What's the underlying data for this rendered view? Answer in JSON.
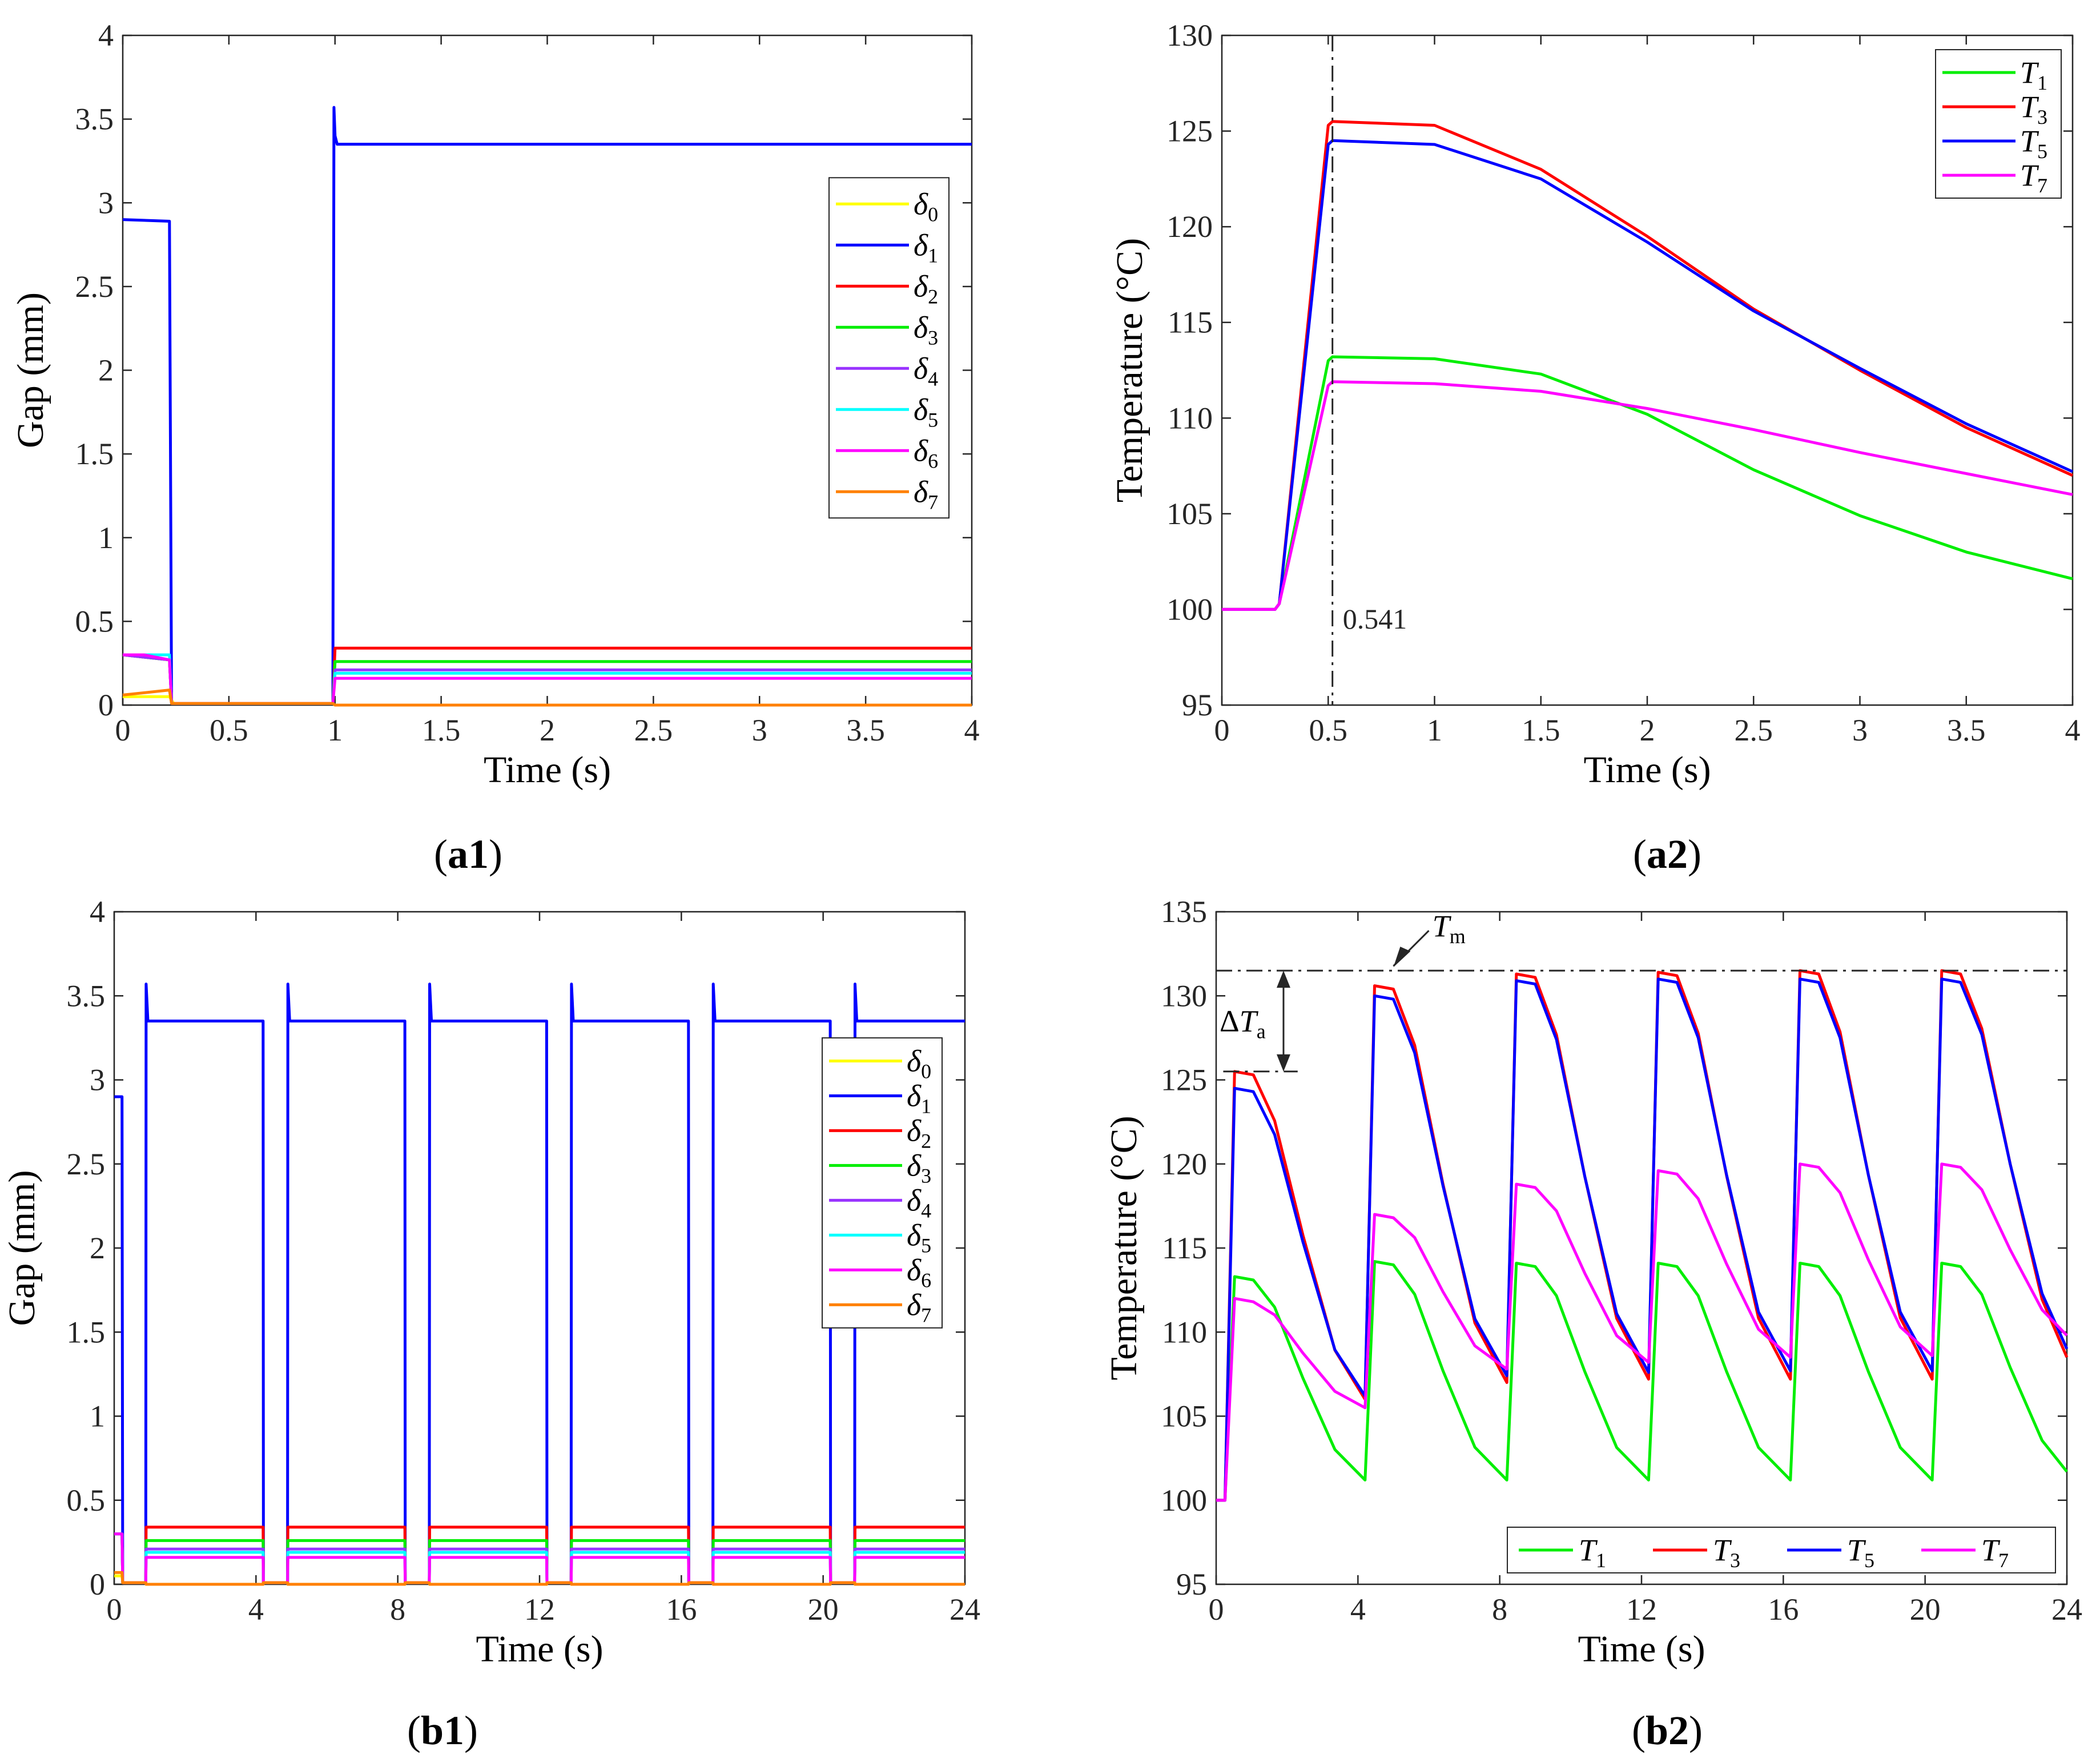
{
  "chart_data": [
    {
      "id": "a1",
      "type": "line",
      "panel_label_bold": "a1",
      "xlabel": "Time (s)",
      "ylabel": "Gap (mm)",
      "xlim": [
        0,
        4
      ],
      "ylim": [
        0,
        4
      ],
      "xticks": [
        0,
        0.5,
        1,
        1.5,
        2,
        2.5,
        3,
        3.5,
        4
      ],
      "yticks": [
        0,
        0.5,
        1,
        1.5,
        2,
        2.5,
        3,
        3.5,
        4
      ],
      "legend_position": "right",
      "series": [
        {
          "name": "δ",
          "sub": "0",
          "color": "#ffff00",
          "x": [
            0,
            0.22,
            0.24,
            0.99,
            1.0,
            4.0
          ],
          "y": [
            0.05,
            0.05,
            0.01,
            0.01,
            0.0,
            0.0
          ]
        },
        {
          "name": "δ",
          "sub": "1",
          "color": "#0000ff",
          "x": [
            0,
            0.22,
            0.23,
            0.99,
            0.995,
            1.0,
            1.01,
            1.02,
            4.0
          ],
          "y": [
            2.9,
            2.89,
            0.01,
            0.01,
            3.57,
            3.4,
            3.35,
            3.35,
            3.35
          ]
        },
        {
          "name": "δ",
          "sub": "2",
          "color": "#ff0000",
          "x": [
            0,
            0.22,
            0.23,
            0.99,
            1.0,
            4.0
          ],
          "y": [
            0.3,
            0.27,
            0.01,
            0.01,
            0.34,
            0.34
          ]
        },
        {
          "name": "δ",
          "sub": "3",
          "color": "#00ee00",
          "x": [
            0,
            0.22,
            0.23,
            0.99,
            1.0,
            4.0
          ],
          "y": [
            0.3,
            0.27,
            0.01,
            0.01,
            0.26,
            0.26
          ]
        },
        {
          "name": "δ",
          "sub": "4",
          "color": "#9933ff",
          "x": [
            0,
            0.22,
            0.23,
            0.99,
            1.0,
            4.0
          ],
          "y": [
            0.3,
            0.27,
            0.01,
            0.01,
            0.21,
            0.21
          ]
        },
        {
          "name": "δ",
          "sub": "5",
          "color": "#00ffff",
          "x": [
            0,
            0.22,
            0.23,
            0.99,
            1.0,
            4.0
          ],
          "y": [
            0.3,
            0.3,
            0.01,
            0.01,
            0.19,
            0.19
          ]
        },
        {
          "name": "δ",
          "sub": "6",
          "color": "#ff00ff",
          "x": [
            0,
            0.1,
            0.22,
            0.23,
            0.99,
            1.0,
            4.0
          ],
          "y": [
            0.3,
            0.3,
            0.27,
            0.01,
            0.01,
            0.16,
            0.16
          ]
        },
        {
          "name": "δ",
          "sub": "7",
          "color": "#ff8000",
          "x": [
            0,
            0.22,
            0.23,
            0.99,
            1.0,
            4.0
          ],
          "y": [
            0.06,
            0.09,
            0.01,
            0.01,
            0.0,
            0.0
          ]
        }
      ]
    },
    {
      "id": "a2",
      "type": "line",
      "panel_label_bold": "a2",
      "xlabel": "Time (s)",
      "ylabel": "Temperature (°C)",
      "xlim": [
        0,
        4
      ],
      "ylim": [
        95,
        130
      ],
      "xticks": [
        0,
        0.5,
        1,
        1.5,
        2,
        2.5,
        3,
        3.5,
        4
      ],
      "yticks": [
        95,
        100,
        105,
        110,
        115,
        120,
        125,
        130
      ],
      "legend_position": "top-right",
      "annotation": {
        "text": "0.541",
        "x": 0.52
      },
      "series": [
        {
          "name": "T",
          "sub": "1",
          "color": "#00ee00",
          "x": [
            0,
            0.25,
            0.27,
            0.5,
            0.52,
            1.0,
            1.5,
            2.0,
            2.5,
            3.0,
            3.5,
            4.0
          ],
          "y": [
            100,
            100,
            100.3,
            113.0,
            113.2,
            113.1,
            112.3,
            110.2,
            107.3,
            104.9,
            103.0,
            101.6
          ]
        },
        {
          "name": "T",
          "sub": "3",
          "color": "#ff0000",
          "x": [
            0,
            0.25,
            0.27,
            0.5,
            0.52,
            1.0,
            1.5,
            2.0,
            2.5,
            3.0,
            3.5,
            4.0
          ],
          "y": [
            100,
            100,
            100.3,
            125.3,
            125.5,
            125.3,
            123.0,
            119.5,
            115.7,
            112.5,
            109.5,
            107.0
          ]
        },
        {
          "name": "T",
          "sub": "5",
          "color": "#0000ff",
          "x": [
            0,
            0.25,
            0.27,
            0.5,
            0.52,
            1.0,
            1.5,
            2.0,
            2.5,
            3.0,
            3.5,
            4.0
          ],
          "y": [
            100,
            100,
            100.3,
            124.3,
            124.5,
            124.3,
            122.5,
            119.2,
            115.6,
            112.6,
            109.7,
            107.2
          ]
        },
        {
          "name": "T",
          "sub": "7",
          "color": "#ff00ff",
          "x": [
            0,
            0.25,
            0.27,
            0.5,
            0.52,
            1.0,
            1.5,
            2.0,
            2.5,
            3.0,
            3.5,
            4.0
          ],
          "y": [
            100,
            100,
            100.3,
            111.7,
            111.9,
            111.8,
            111.4,
            110.5,
            109.4,
            108.2,
            107.1,
            106.0
          ]
        }
      ]
    },
    {
      "id": "b1",
      "type": "line",
      "panel_label_bold": "b1",
      "xlabel": "Time (s)",
      "ylabel": "Gap (mm)",
      "xlim": [
        0,
        24
      ],
      "ylim": [
        0,
        4
      ],
      "xticks": [
        0,
        4,
        8,
        12,
        16,
        20,
        24
      ],
      "yticks": [
        0,
        0.5,
        1,
        1.5,
        2,
        2.5,
        3,
        3.5,
        4
      ],
      "legend_position": "right",
      "cycle": {
        "period": 4,
        "open_start": 0.9,
        "close_at": 4.2
      },
      "series": [
        {
          "name": "δ",
          "sub": "0",
          "color": "#ffff00",
          "level": 0.0,
          "initial": 0.05
        },
        {
          "name": "δ",
          "sub": "1",
          "color": "#0000ff",
          "level": 3.35,
          "initial": 2.9,
          "spike": 3.57
        },
        {
          "name": "δ",
          "sub": "2",
          "color": "#ff0000",
          "level": 0.34,
          "initial": 0.3
        },
        {
          "name": "δ",
          "sub": "3",
          "color": "#00ee00",
          "level": 0.26,
          "initial": 0.3
        },
        {
          "name": "δ",
          "sub": "4",
          "color": "#9933ff",
          "level": 0.21,
          "initial": 0.3
        },
        {
          "name": "δ",
          "sub": "5",
          "color": "#00ffff",
          "level": 0.19,
          "initial": 0.3
        },
        {
          "name": "δ",
          "sub": "6",
          "color": "#ff00ff",
          "level": 0.16,
          "initial": 0.3
        },
        {
          "name": "δ",
          "sub": "7",
          "color": "#ff8000",
          "level": 0.0,
          "initial": 0.07
        }
      ]
    },
    {
      "id": "b2",
      "type": "line",
      "panel_label_bold": "b2",
      "xlabel": "Time (s)",
      "ylabel": "Temperature (°C)",
      "xlim": [
        0,
        24
      ],
      "ylim": [
        95,
        135
      ],
      "xticks": [
        0,
        4,
        8,
        12,
        16,
        20,
        24
      ],
      "yticks": [
        95,
        100,
        105,
        110,
        115,
        120,
        125,
        130,
        135
      ],
      "legend_position": "bottom-right",
      "annotation_tm": {
        "label": "T",
        "sub": "m",
        "value": 131.5
      },
      "annotation_dta": {
        "label": "ΔT",
        "sub": "a",
        "from": 125.5,
        "to": 131.5
      },
      "series": [
        {
          "name": "T",
          "sub": "1",
          "color": "#00ee00",
          "peaks": [
            113.3,
            114.2,
            114.1,
            114.1,
            114.1,
            114.1
          ],
          "troughs": [
            101.2,
            101.2,
            101.2,
            101.2,
            101.2,
            101.7
          ]
        },
        {
          "name": "T",
          "sub": "3",
          "color": "#ff0000",
          "peaks": [
            125.5,
            130.6,
            131.3,
            131.4,
            131.5,
            131.5
          ],
          "troughs": [
            106.0,
            107.0,
            107.2,
            107.2,
            107.2,
            108.5
          ]
        },
        {
          "name": "T",
          "sub": "5",
          "color": "#0000ff",
          "peaks": [
            124.5,
            130.0,
            130.9,
            131.0,
            131.0,
            131.0
          ],
          "troughs": [
            106.2,
            107.4,
            107.6,
            107.7,
            107.7,
            109.0
          ]
        },
        {
          "name": "T",
          "sub": "7",
          "color": "#ff00ff",
          "peaks": [
            112.0,
            117.0,
            118.8,
            119.6,
            120.0,
            120.0
          ],
          "troughs": [
            105.5,
            107.8,
            108.2,
            108.5,
            108.6,
            109.8
          ]
        }
      ]
    }
  ]
}
